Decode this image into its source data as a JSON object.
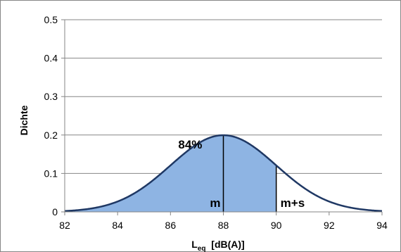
{
  "chart_data": {
    "type": "area",
    "title": "",
    "xlabel": {
      "main": "L",
      "sub": "eq",
      "rest": "  [dB(A)]"
    },
    "ylabel": "Dichte",
    "xlim": [
      82,
      94
    ],
    "ylim": [
      0,
      0.5
    ],
    "x_ticks": [
      "82",
      "84",
      "86",
      "88",
      "90",
      "92",
      "94"
    ],
    "y_ticks": [
      "0",
      "0.1",
      "0.2",
      "0.3",
      "0.4",
      "0.5"
    ],
    "grid": "horizontal",
    "distribution": {
      "mean": 88,
      "sd": 2
    },
    "shaded_region": {
      "from": 82,
      "to": 90,
      "color": "#8eb4e3"
    },
    "curve_color": "#1f3864",
    "markers": [
      {
        "x": 88,
        "label": "m"
      },
      {
        "x": 90,
        "label": "m+s"
      }
    ],
    "annotations": [
      {
        "text": "84%",
        "x": 87.2,
        "y": 0.165
      }
    ]
  }
}
